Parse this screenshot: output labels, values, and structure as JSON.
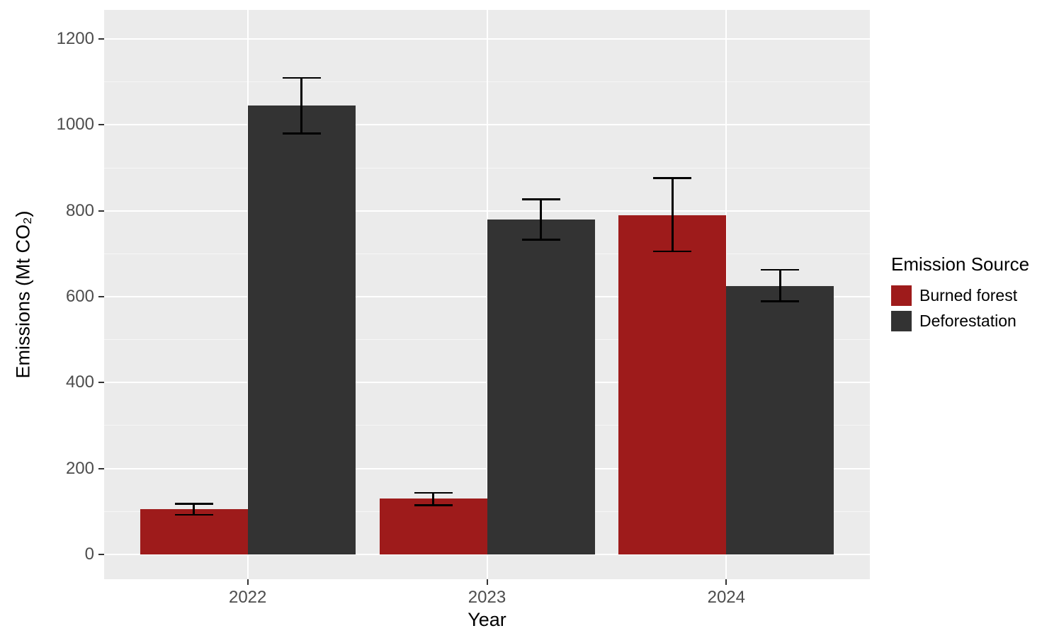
{
  "chart_data": {
    "type": "bar",
    "title": "",
    "xlabel": "Year",
    "ylabel": "Emissions (Mt CO₂)",
    "categories": [
      "2022",
      "2023",
      "2024"
    ],
    "series": [
      {
        "name": "Burned forest",
        "color": "#9E1B1B",
        "values": [
          105,
          130,
          790
        ],
        "error_low": [
          92,
          114,
          706
        ],
        "error_high": [
          118,
          143,
          876
        ]
      },
      {
        "name": "Deforestation",
        "color": "#333333",
        "values": [
          1045,
          780,
          625
        ],
        "error_low": [
          980,
          733,
          589
        ],
        "error_high": [
          1110,
          827,
          663
        ]
      }
    ],
    "ylim": [
      0,
      1200
    ],
    "yticks": [
      0,
      200,
      400,
      600,
      800,
      1000,
      1200
    ],
    "yticks_minor": [
      100,
      300,
      500,
      700,
      900,
      1100
    ],
    "grid": true,
    "legend_title": "Emission Source",
    "legend_position": "right"
  },
  "colors": {
    "panel_bg": "#EBEBEB",
    "grid": "#FFFFFF",
    "tick_label": "#4D4D4D",
    "axis_title": "#000000",
    "error_bar": "#000000",
    "tick_mark": "#333333"
  }
}
